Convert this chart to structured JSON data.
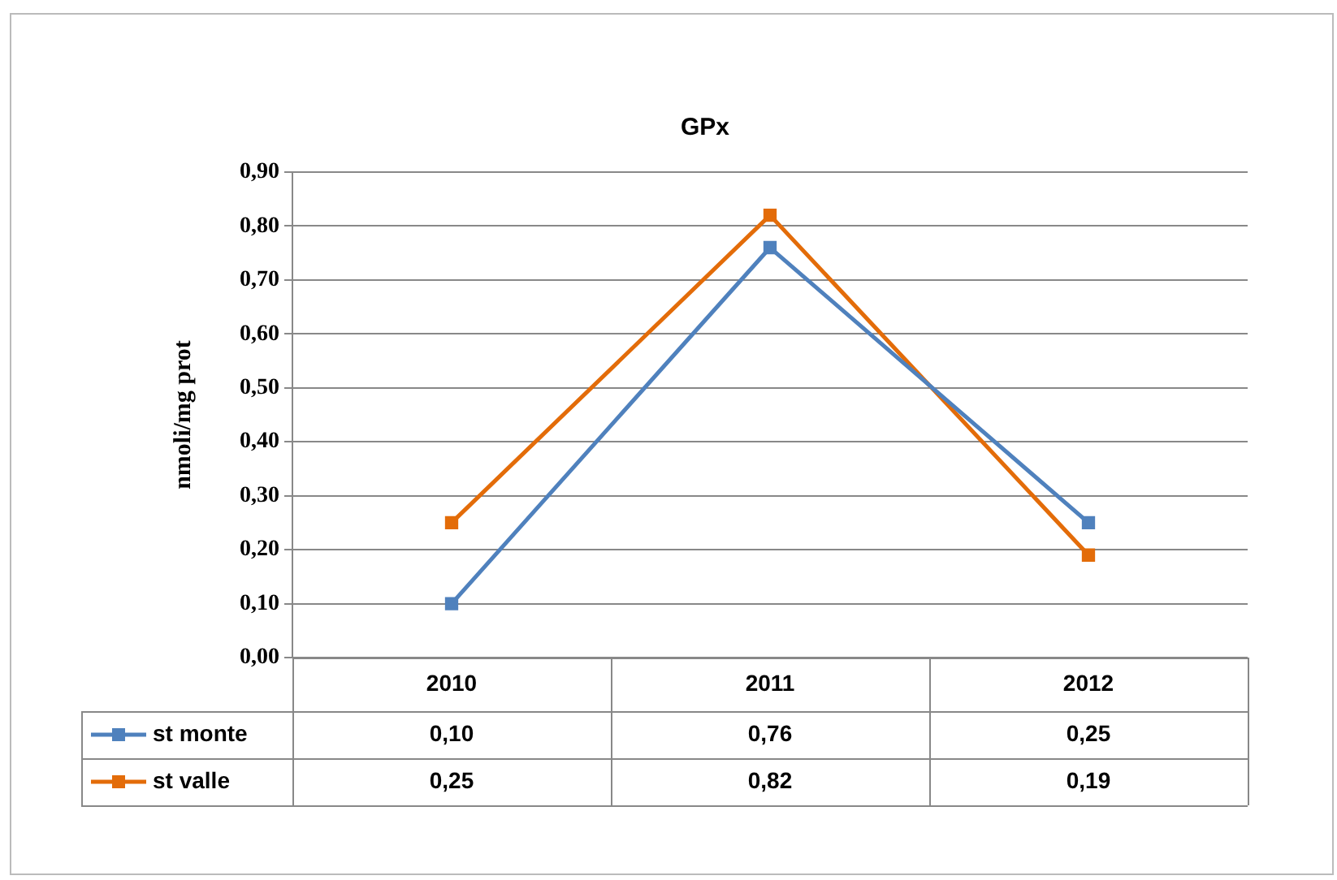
{
  "chart_data": {
    "type": "line",
    "title": "GPx",
    "ylabel": "nmoli/mg prot",
    "categories": [
      "2010",
      "2011",
      "2012"
    ],
    "series": [
      {
        "name": "st monte",
        "color": "#4f81bd",
        "values": [
          0.1,
          0.76,
          0.25
        ],
        "value_labels": [
          "0,10",
          "0,76",
          "0,25"
        ]
      },
      {
        "name": "st valle",
        "color": "#e36c09",
        "values": [
          0.25,
          0.82,
          0.19
        ],
        "value_labels": [
          "0,25",
          "0,82",
          "0,19"
        ]
      }
    ],
    "ylim": [
      0,
      0.9
    ],
    "yticks": [
      {
        "value": 0,
        "label": "0,00"
      },
      {
        "value": 0.1,
        "label": "0,10"
      },
      {
        "value": 0.2,
        "label": "0,20"
      },
      {
        "value": 0.3,
        "label": "0,30"
      },
      {
        "value": 0.4,
        "label": "0,40"
      },
      {
        "value": 0.5,
        "label": "0,50"
      },
      {
        "value": 0.6,
        "label": "0,60"
      },
      {
        "value": 0.7,
        "label": "0,70"
      },
      {
        "value": 0.8,
        "label": "0,80"
      },
      {
        "value": 0.9,
        "label": "0,90"
      }
    ],
    "grid": "y",
    "legend": "bottom",
    "marker": "square"
  }
}
